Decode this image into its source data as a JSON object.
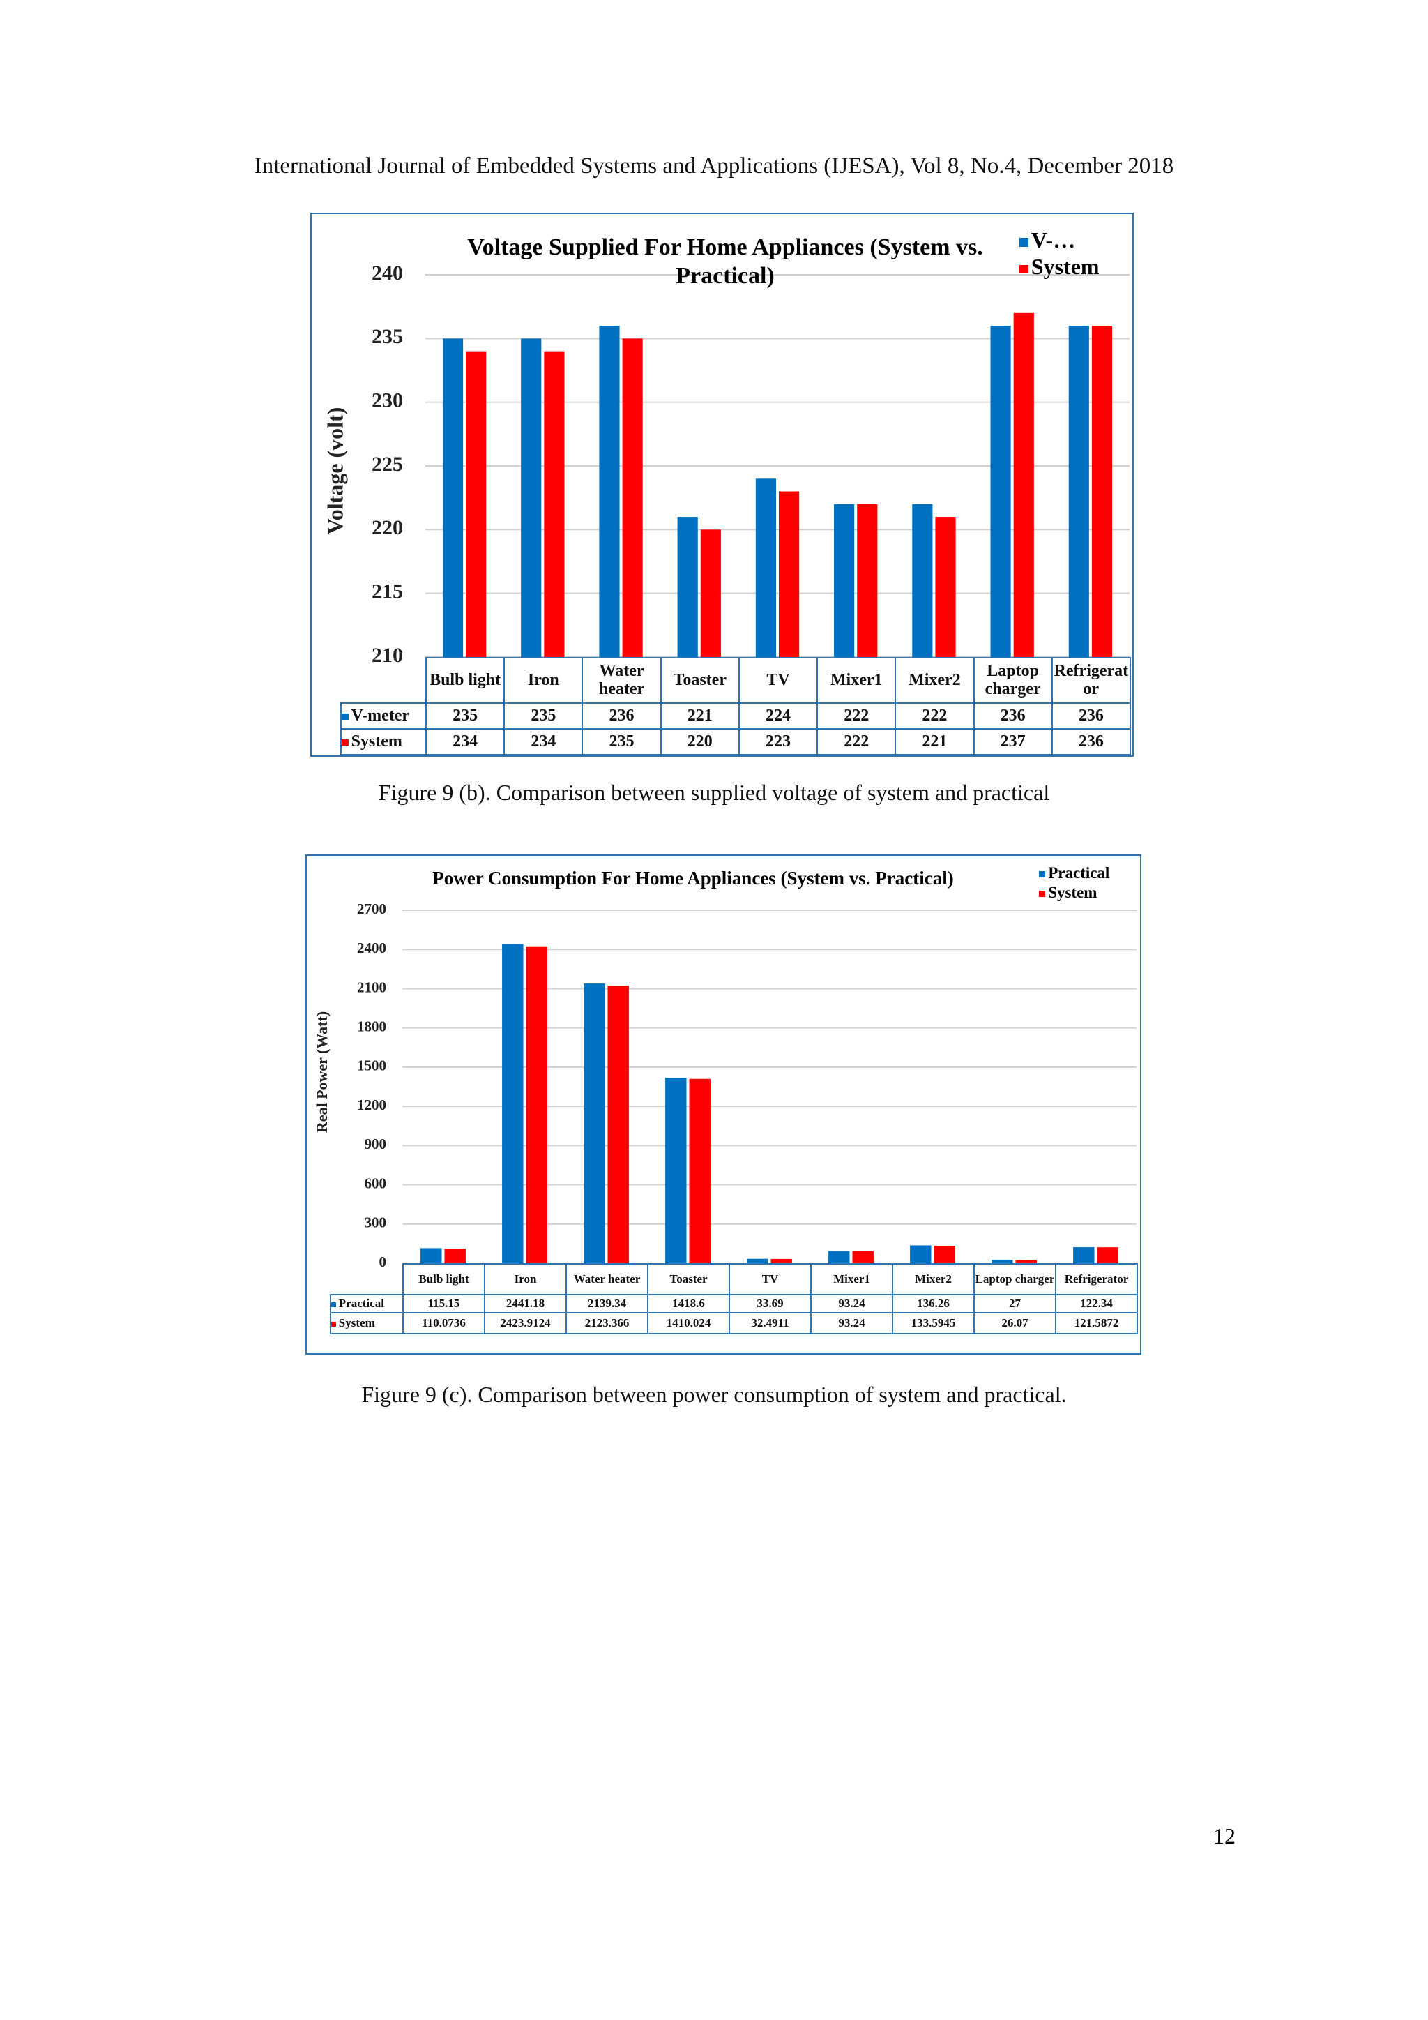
{
  "header": "International Journal of Embedded Systems and Applications (IJESA), Vol 8, No.4, December 2018",
  "chart_data": [
    {
      "type": "bar",
      "title": "Voltage Supplied For Home Appliances (System vs. Practical)",
      "y_label": "Voltage (volt)",
      "categories": [
        "Bulb light",
        "Iron",
        "Water heater",
        "Toaster",
        "TV",
        "Mixer1",
        "Mixer2",
        "Laptop charger",
        "Refrigerator"
      ],
      "series": [
        {
          "name": "V-meter",
          "color": "#0070c0",
          "values": [
            235,
            235,
            236,
            221,
            224,
            222,
            222,
            236,
            236
          ]
        },
        {
          "name": "System",
          "color": "#ff0000",
          "values": [
            234,
            234,
            235,
            220,
            223,
            222,
            221,
            237,
            236
          ]
        }
      ],
      "legend_labels": [
        "V-…",
        "System"
      ],
      "ylim": [
        210,
        240
      ],
      "yticks": [
        210,
        215,
        220,
        225,
        230,
        235,
        240
      ],
      "grid": true
    },
    {
      "type": "bar",
      "title": "Power Consumption For Home Appliances (System vs. Practical)",
      "y_label": "Real Power (Watt)",
      "categories": [
        "Bulb light",
        "Iron",
        "Water heater",
        "Toaster",
        "TV",
        "Mixer1",
        "Mixer2",
        "Laptop charger",
        "Refrigerator"
      ],
      "series": [
        {
          "name": "Practical",
          "color": "#0070c0",
          "values": [
            115.15,
            2441.18,
            2139.34,
            1418.6,
            33.69,
            93.24,
            136.26,
            27,
            122.34
          ]
        },
        {
          "name": "System",
          "color": "#ff0000",
          "values": [
            110.0736,
            2423.9124,
            2123.366,
            1410.024,
            32.4911,
            93.24,
            133.5945,
            26.07,
            121.5872
          ]
        }
      ],
      "ylim": [
        0,
        2700
      ],
      "yticks": [
        0,
        300,
        600,
        900,
        1200,
        1500,
        1800,
        2100,
        2400,
        2700
      ],
      "grid": true
    }
  ],
  "captions": [
    "Figure 9 (b).  Comparison between supplied voltage of system and practical",
    "Figure 9 (c).  Comparison between power consumption of system and practical."
  ],
  "page_number": "12"
}
